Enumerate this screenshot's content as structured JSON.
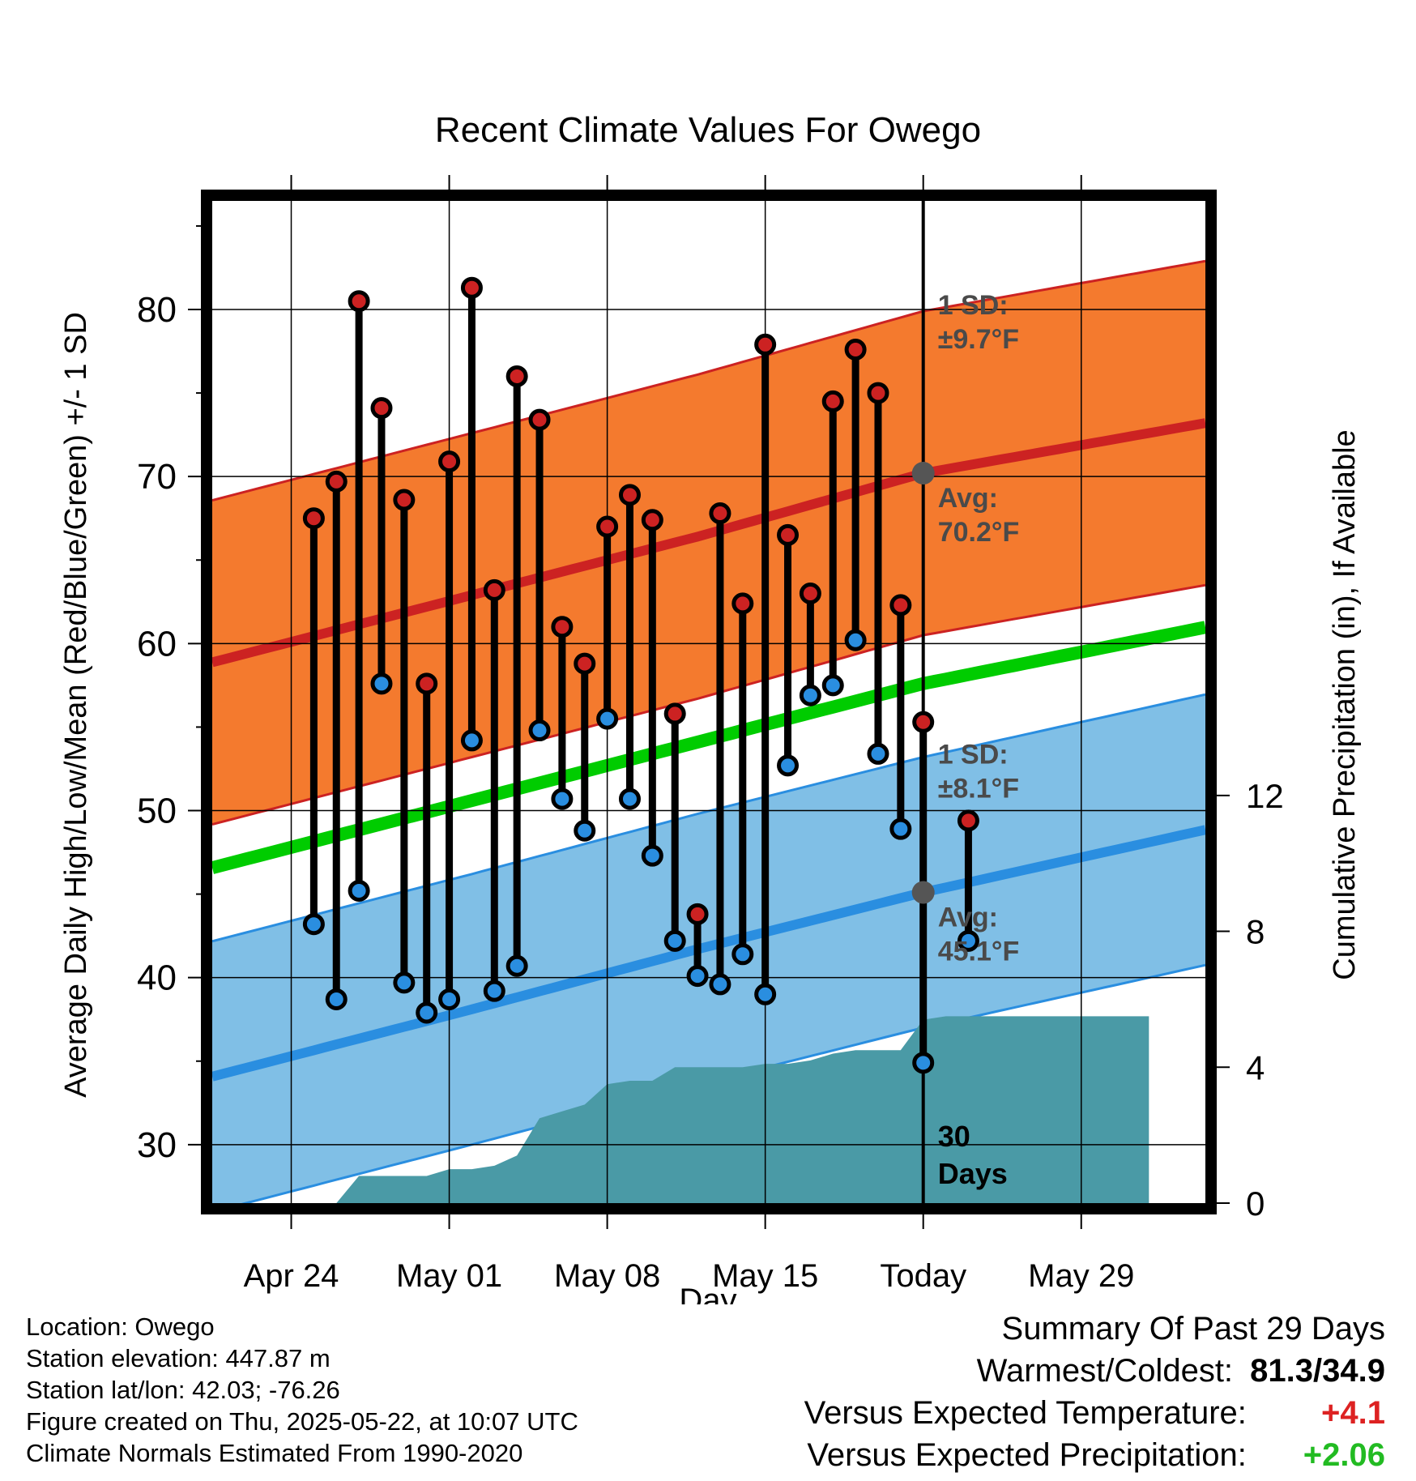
{
  "chart_data": {
    "type": "line",
    "title": "Recent Climate Values For Owego",
    "xlabel": "Day",
    "ylabel": "Average Daily High/Low/Mean (Red/Blue/Green) +/- 1 SD",
    "y2label": "Cumulative Precipitation (in), If Available",
    "x_tick_labels": [
      "Apr 24",
      "May 01",
      "May 08",
      "May 15",
      "Today",
      "May 29"
    ],
    "ylim": [
      26.5,
      86.5
    ],
    "y_ticks": [
      30,
      40,
      50,
      60,
      70,
      80
    ],
    "y2lim": [
      0,
      29.5
    ],
    "y2_ticks": [
      0,
      4,
      8,
      12
    ],
    "grid": true,
    "series": [
      {
        "name": "Daily High",
        "color": "#cc2222",
        "day": [
          -27,
          -26,
          -25,
          -24,
          -23,
          -22,
          -21,
          -20,
          -19,
          -18,
          -17,
          -16,
          -15,
          -14,
          -13,
          -12,
          -11,
          -10,
          -9,
          -8,
          -7,
          -6,
          -5,
          -4,
          -3,
          -2,
          -1
        ],
        "values": [
          67.5,
          69.7,
          80.5,
          74.1,
          68.6,
          57.6,
          70.9,
          81.3,
          63.2,
          76.0,
          73.4,
          61.0,
          58.8,
          67.0,
          68.9,
          67.4,
          55.8,
          43.8,
          67.8,
          62.4,
          77.9,
          66.5,
          63.0,
          74.5,
          77.6,
          75.0,
          62.3
        ]
      },
      {
        "name": "Daily Low",
        "color": "#2a8ee0",
        "day": [
          -27,
          -26,
          -25,
          -24,
          -23,
          -22,
          -21,
          -20,
          -19,
          -18,
          -17,
          -16,
          -15,
          -14,
          -13,
          -12,
          -11,
          -10,
          -9,
          -8,
          -7,
          -6,
          -5,
          -4,
          -3,
          -2,
          -1
        ],
        "values": [
          43.2,
          38.7,
          45.2,
          57.6,
          39.7,
          37.9,
          38.7,
          54.2,
          39.2,
          40.7,
          54.8,
          50.7,
          48.8,
          55.5,
          50.7,
          47.3,
          42.2,
          40.1,
          39.6,
          41.4,
          39.0,
          52.7,
          56.9,
          57.5,
          60.2,
          53.4,
          48.9
        ]
      },
      {
        "name": "Later highs/lows",
        "day": [
          0,
          2
        ],
        "high": [
          55.3,
          49.4
        ],
        "low": [
          34.9,
          42.2
        ]
      },
      {
        "name": "Normal High",
        "color": "#cc2222",
        "day": [
          -30,
          -20,
          -10,
          0,
          10
        ],
        "values": [
          59.4,
          62.9,
          66.4,
          70.2,
          72.6
        ],
        "sd": 9.7
      },
      {
        "name": "Normal Low",
        "color": "#2a8ee0",
        "day": [
          -30,
          -20,
          -10,
          0,
          10
        ],
        "values": [
          34.6,
          38.1,
          41.7,
          45.1,
          48.1
        ],
        "sd": 8.1
      },
      {
        "name": "Normal Mean",
        "color": "#00cc00",
        "day": [
          -30,
          -20,
          -10,
          0,
          10
        ],
        "values": [
          47.1,
          50.6,
          54.1,
          57.6,
          60.3
        ]
      },
      {
        "name": "Cumulative Precipitation",
        "color": "#4a9aa6",
        "day": [
          -26,
          -25,
          -24,
          -23,
          -22,
          -21,
          -20,
          -19,
          -18,
          -17,
          -16,
          -15,
          -14,
          -13,
          -12,
          -11,
          -10,
          -9,
          -8,
          -7,
          -6,
          -5,
          -4,
          -3,
          -2,
          -1,
          0,
          1,
          2,
          3,
          10
        ],
        "values": [
          0,
          0.8,
          0.8,
          0.8,
          0.8,
          1.0,
          1.0,
          1.1,
          1.4,
          2.5,
          2.7,
          2.9,
          3.5,
          3.6,
          3.6,
          4.0,
          4.0,
          4.0,
          4.0,
          4.1,
          4.1,
          4.2,
          4.4,
          4.5,
          4.5,
          4.5,
          5.4,
          5.5,
          5.5,
          5.5,
          5.5
        ]
      }
    ],
    "annotations": {
      "high_sd": "1 SD:",
      "high_sd_val": "±9.7°F",
      "high_avg": "Avg:",
      "high_avg_val": "70.2°F",
      "low_sd": "1 SD:",
      "low_sd_val": "±8.1°F",
      "low_avg": "Avg:",
      "low_avg_val": "45.1°F",
      "days_num": "30",
      "days_word": "Days"
    }
  },
  "info": {
    "location": "Location: Owego",
    "elevation": "Station elevation: 447.87 m",
    "latlon": "Station lat/lon: 42.03; -76.26",
    "created": "Figure created on Thu, 2025-05-22, at 10:07 UTC",
    "normals": "Climate Normals Estimated From 1990-2020"
  },
  "summary": {
    "title": "Summary Of Past 29 Days",
    "warm_cold_label": "Warmest/Coldest:",
    "warm_cold_value": "81.3/34.9",
    "temp_label": "Versus Expected Temperature:",
    "temp_value": "+4.1",
    "temp_color": "#dd2222",
    "precip_label": "Versus Expected Precipitation:",
    "precip_value": "+2.06",
    "precip_color": "#22bb22"
  }
}
